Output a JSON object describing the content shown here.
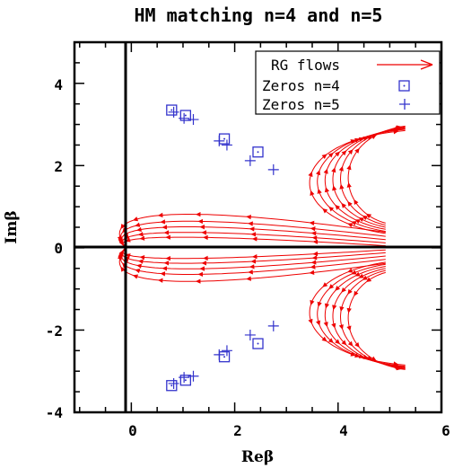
{
  "chart_data": {
    "type": "scatter",
    "title": "HM matching n=4 and n=5",
    "xlabel": "Reβ",
    "ylabel": "Imβ",
    "xlim": [
      -1.1,
      6
    ],
    "ylim": [
      -4,
      5
    ],
    "xticks": [
      0,
      2,
      4,
      6
    ],
    "yticks": [
      -4,
      -2,
      0,
      2,
      4
    ],
    "grid": false,
    "legend_position": "top-right",
    "colors": {
      "zeros_n4": "#3333cc",
      "zeros_n5": "#3333cc",
      "rg_flows": "#ee0000",
      "axes": "#000000"
    },
    "legend": [
      {
        "label": "RG flows",
        "marker": "arrow",
        "color": "#ee0000"
      },
      {
        "label": "Zeros n=4",
        "marker": "open-square",
        "color": "#3333cc"
      },
      {
        "label": "Zeros n=5",
        "marker": "plus",
        "color": "#3333cc"
      }
    ],
    "series": [
      {
        "name": "Zeros n=4",
        "marker": "open-square",
        "points": [
          [
            0.78,
            3.35
          ],
          [
            1.05,
            3.22
          ],
          [
            1.8,
            2.65
          ],
          [
            2.45,
            2.33
          ],
          [
            0.78,
            -3.35
          ],
          [
            1.05,
            -3.22
          ],
          [
            1.8,
            -2.65
          ],
          [
            2.45,
            -2.33
          ]
        ]
      },
      {
        "name": "Zeros n=5",
        "marker": "plus",
        "points": [
          [
            0.82,
            3.3
          ],
          [
            1.02,
            3.15
          ],
          [
            1.2,
            3.12
          ],
          [
            1.7,
            2.6
          ],
          [
            1.85,
            2.5
          ],
          [
            2.3,
            2.12
          ],
          [
            2.75,
            1.9
          ],
          [
            0.82,
            -3.3
          ],
          [
            1.02,
            -3.15
          ],
          [
            1.2,
            -3.12
          ],
          [
            1.7,
            -2.6
          ],
          [
            1.85,
            -2.5
          ],
          [
            2.3,
            -2.12
          ],
          [
            2.75,
            -1.9
          ]
        ]
      },
      {
        "name": "RG flows",
        "type": "flow-lines",
        "converging_flows": {
          "start_x": 4.92,
          "start_y": [
            0.05,
            0.12,
            0.2,
            0.28,
            0.38,
            -0.05,
            -0.12,
            -0.2,
            -0.28,
            -0.38
          ],
          "end_point": [
            -0.1,
            0.0
          ],
          "outermost_path": [
            [
              4.92,
              0.38
            ],
            [
              2.5,
              0.75
            ],
            [
              1.0,
              1.2
            ],
            [
              0.3,
              1.45
            ],
            [
              -0.1,
              1.43
            ],
            [
              -0.45,
              0.7
            ],
            [
              -0.1,
              0.0
            ]
          ]
        },
        "horseshoe_flows": {
          "start_x": 4.92,
          "start_y_upper": [
            0.35,
            0.4,
            0.45,
            0.5,
            0.55,
            0.6
          ],
          "end_x": 5.3,
          "end_y_upper": [
            2.85,
            2.88,
            2.9,
            2.92,
            2.94,
            2.96
          ],
          "vertex_x": [
            3.25,
            3.45,
            3.65,
            3.85,
            4.05,
            4.25
          ],
          "mirror_lower": true
        }
      }
    ]
  }
}
